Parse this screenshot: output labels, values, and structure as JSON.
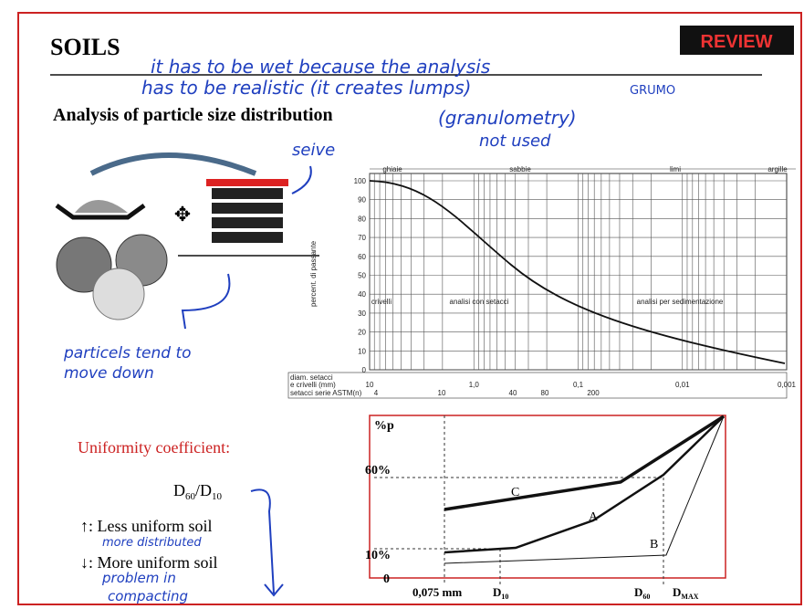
{
  "header": {
    "title": "SOILS",
    "badge": "REVIEW"
  },
  "notes": {
    "line1": "it has to be wet because the analysis",
    "line2": "has to be realistic (it creates lumps)",
    "grumo": "GRUMO",
    "granulometry": "(granulometry)",
    "not_used": "not used",
    "seive": "seive",
    "particles": [
      "particels tend to",
      "move down"
    ],
    "more_distributed": "more distributed",
    "problem": [
      "problem in",
      "compacting"
    ]
  },
  "section": "Analysis of particle size distribution",
  "grading_chart": {
    "y_label": "percent. di passante",
    "yticks": [
      0,
      10,
      20,
      30,
      40,
      50,
      60,
      70,
      80,
      90,
      100
    ],
    "classes": [
      "ghiaie",
      "sabbie",
      "limi",
      "argille"
    ],
    "methods": [
      "crivelli",
      "analisi con setacci",
      "analisi per sedimentazione"
    ],
    "x_row_label": [
      "diam. setacci",
      "e crivelli (mm)"
    ],
    "xticks": [
      "10",
      "1,0",
      "0,1",
      "0,01",
      "0,001"
    ],
    "astm_label": "setacci serie ASTM(n)",
    "astm": [
      "4",
      "10",
      "40",
      "80",
      "200"
    ]
  },
  "uniformity": {
    "title": "Uniformity coefficient:",
    "ratio": [
      {
        "base": "D",
        "sub": "60"
      },
      {
        "base": "/D",
        "sub": "10"
      }
    ],
    "less": "↑: Less uniform soil",
    "more": "↓: More uniform soil"
  },
  "curves_chart": {
    "y_title": "%p",
    "y_labels": [
      "60%",
      "10%",
      "0"
    ],
    "x_start": "0,075 mm",
    "x_labels": [
      {
        "base": "D",
        "sub": "10"
      },
      {
        "base": "D",
        "sub": "60"
      },
      {
        "base": "D",
        "sub": "MAX"
      }
    ],
    "curves": [
      "C",
      "A",
      "B"
    ]
  }
}
